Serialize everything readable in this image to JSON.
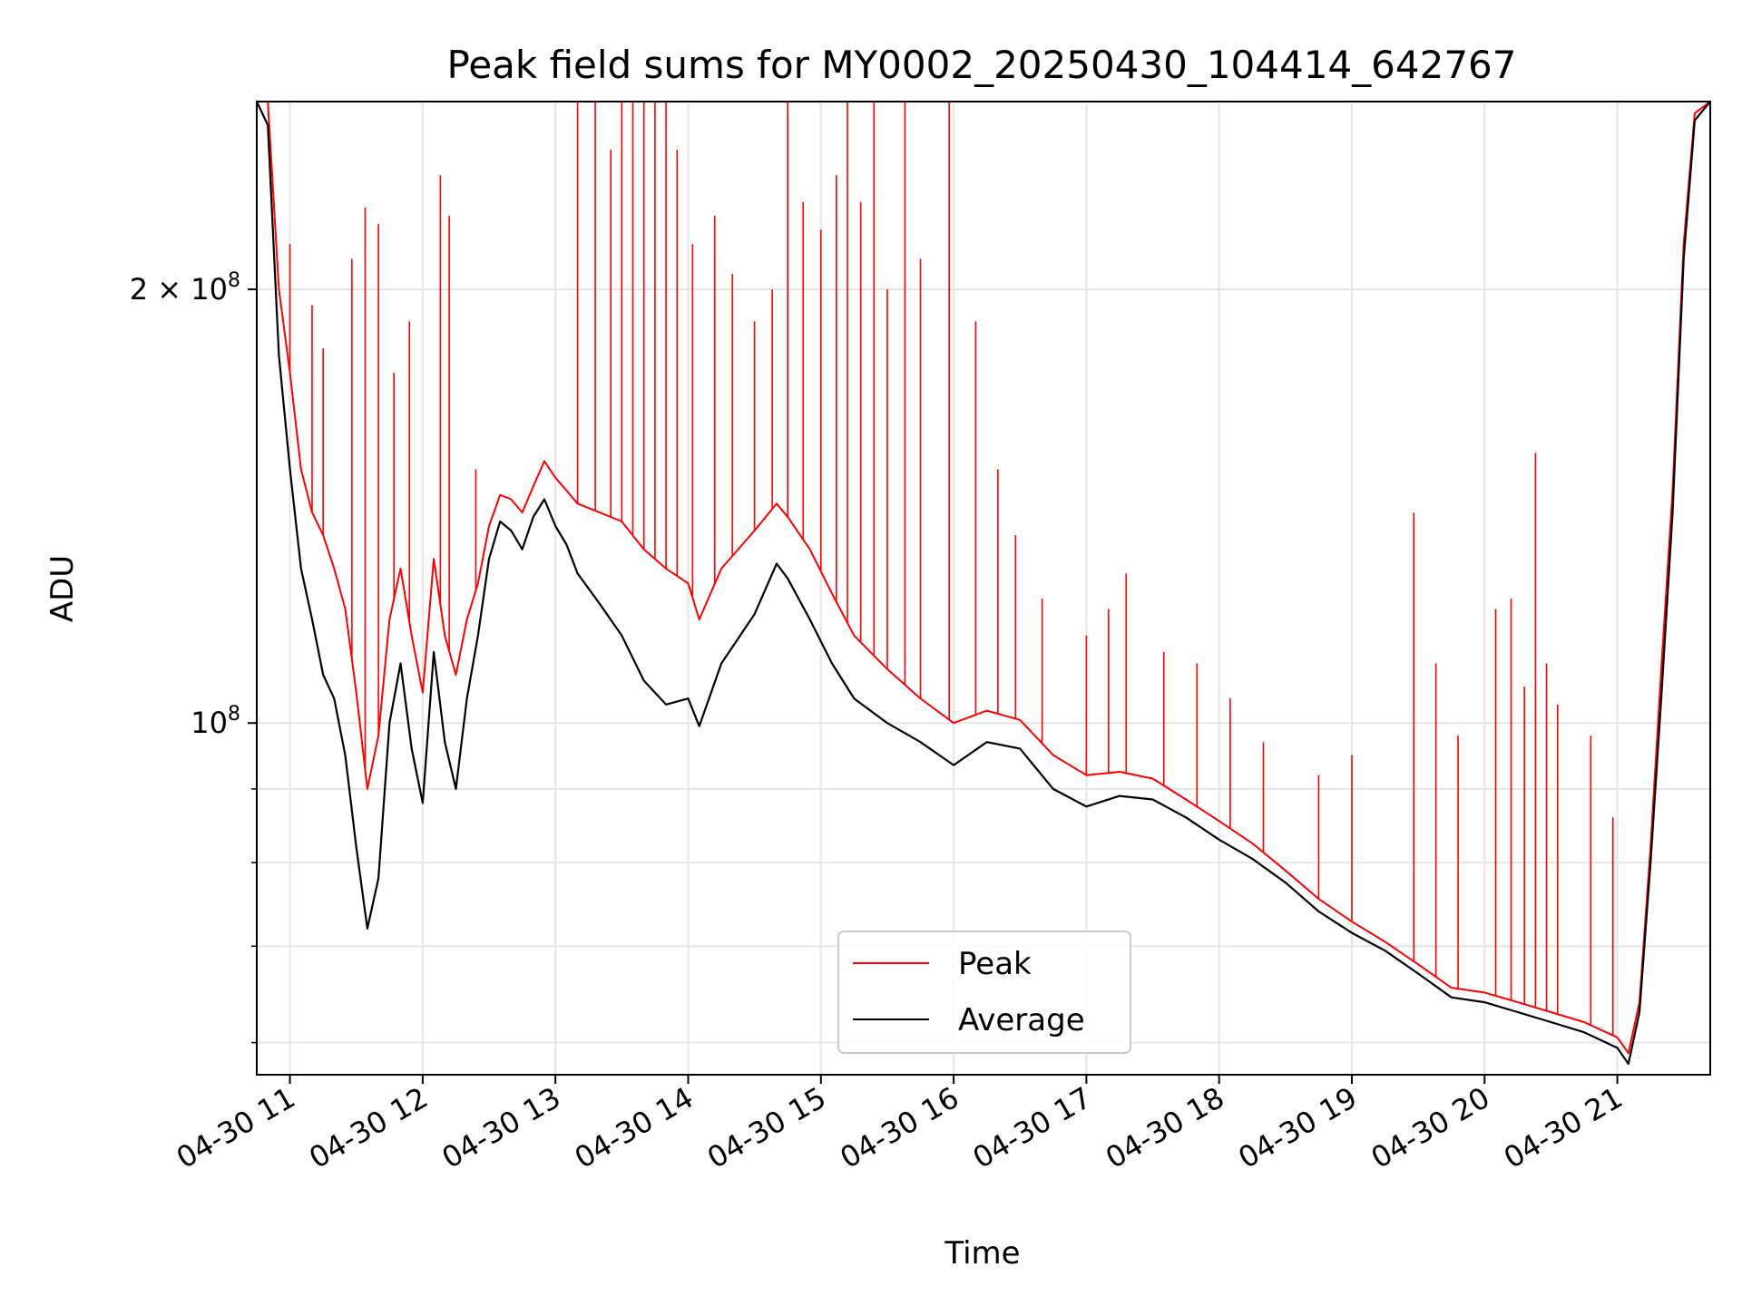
{
  "chart_data": {
    "type": "line",
    "title": "Peak field sums for MY0002_20250430_104414_642767",
    "xlabel": "Time",
    "ylabel": "ADU",
    "yscale": "log",
    "ylim": [
      57000000,
      270000000
    ],
    "xlim": [
      "2025-04-30 10:45",
      "2025-04-30 21:42"
    ],
    "x_ticks": [
      {
        "t": "2025-04-30 11:00",
        "label": "04-30 11"
      },
      {
        "t": "2025-04-30 12:00",
        "label": "04-30 12"
      },
      {
        "t": "2025-04-30 13:00",
        "label": "04-30 13"
      },
      {
        "t": "2025-04-30 14:00",
        "label": "04-30 14"
      },
      {
        "t": "2025-04-30 15:00",
        "label": "04-30 15"
      },
      {
        "t": "2025-04-30 16:00",
        "label": "04-30 16"
      },
      {
        "t": "2025-04-30 17:00",
        "label": "04-30 17"
      },
      {
        "t": "2025-04-30 18:00",
        "label": "04-30 18"
      },
      {
        "t": "2025-04-30 19:00",
        "label": "04-30 19"
      },
      {
        "t": "2025-04-30 20:00",
        "label": "04-30 20"
      },
      {
        "t": "2025-04-30 21:00",
        "label": "04-30 21"
      }
    ],
    "y_major_ticks": [
      {
        "value": 100000000,
        "base": "10",
        "exp": "8",
        "mant": ""
      },
      {
        "value": 200000000,
        "base": "10",
        "exp": "8",
        "mant": "2 × "
      }
    ],
    "y_minor_ticks": [
      60000000,
      70000000,
      80000000,
      90000000
    ],
    "grid": true,
    "legend": "lower-center",
    "series": [
      {
        "name": "Average",
        "color": "#000000",
        "points": [
          [
            "2025-04-30 10:45",
            270000000
          ],
          [
            "2025-04-30 10:50",
            260000000
          ],
          [
            "2025-04-30 10:55",
            180000000
          ],
          [
            "2025-04-30 11:00",
            150000000
          ],
          [
            "2025-04-30 11:05",
            128000000
          ],
          [
            "2025-04-30 11:10",
            118000000
          ],
          [
            "2025-04-30 11:15",
            108000000
          ],
          [
            "2025-04-30 11:20",
            104000000
          ],
          [
            "2025-04-30 11:25",
            95000000
          ],
          [
            "2025-04-30 11:30",
            82000000
          ],
          [
            "2025-04-30 11:35",
            72000000
          ],
          [
            "2025-04-30 11:40",
            78000000
          ],
          [
            "2025-04-30 11:45",
            100000000
          ],
          [
            "2025-04-30 11:50",
            110000000
          ],
          [
            "2025-04-30 11:55",
            96000000
          ],
          [
            "2025-04-30 12:00",
            88000000
          ],
          [
            "2025-04-30 12:05",
            112000000
          ],
          [
            "2025-04-30 12:10",
            97000000
          ],
          [
            "2025-04-30 12:15",
            90000000
          ],
          [
            "2025-04-30 12:20",
            104000000
          ],
          [
            "2025-04-30 12:25",
            115000000
          ],
          [
            "2025-04-30 12:30",
            130000000
          ],
          [
            "2025-04-30 12:35",
            138000000
          ],
          [
            "2025-04-30 12:40",
            136000000
          ],
          [
            "2025-04-30 12:45",
            132000000
          ],
          [
            "2025-04-30 12:50",
            139000000
          ],
          [
            "2025-04-30 12:55",
            143000000
          ],
          [
            "2025-04-30 13:00",
            137000000
          ],
          [
            "2025-04-30 13:05",
            133000000
          ],
          [
            "2025-04-30 13:10",
            127000000
          ],
          [
            "2025-04-30 13:20",
            121000000
          ],
          [
            "2025-04-30 13:30",
            115000000
          ],
          [
            "2025-04-30 13:40",
            107000000
          ],
          [
            "2025-04-30 13:50",
            103000000
          ],
          [
            "2025-04-30 14:00",
            104000000
          ],
          [
            "2025-04-30 14:05",
            99500000
          ],
          [
            "2025-04-30 14:15",
            110000000
          ],
          [
            "2025-04-30 14:30",
            119000000
          ],
          [
            "2025-04-30 14:40",
            129000000
          ],
          [
            "2025-04-30 14:45",
            126000000
          ],
          [
            "2025-04-30 14:55",
            118000000
          ],
          [
            "2025-04-30 15:05",
            110000000
          ],
          [
            "2025-04-30 15:15",
            104000000
          ],
          [
            "2025-04-30 15:30",
            100000000
          ],
          [
            "2025-04-30 15:45",
            97000000
          ],
          [
            "2025-04-30 16:00",
            93500000
          ],
          [
            "2025-04-30 16:15",
            97000000
          ],
          [
            "2025-04-30 16:30",
            96000000
          ],
          [
            "2025-04-30 16:45",
            90000000
          ],
          [
            "2025-04-30 17:00",
            87500000
          ],
          [
            "2025-04-30 17:15",
            89000000
          ],
          [
            "2025-04-30 17:30",
            88500000
          ],
          [
            "2025-04-30 17:45",
            86000000
          ],
          [
            "2025-04-30 18:00",
            83000000
          ],
          [
            "2025-04-30 18:15",
            80500000
          ],
          [
            "2025-04-30 18:30",
            77500000
          ],
          [
            "2025-04-30 18:45",
            74000000
          ],
          [
            "2025-04-30 19:00",
            71500000
          ],
          [
            "2025-04-30 19:15",
            69500000
          ],
          [
            "2025-04-30 19:30",
            67000000
          ],
          [
            "2025-04-30 19:45",
            64500000
          ],
          [
            "2025-04-30 20:00",
            64000000
          ],
          [
            "2025-04-30 20:15",
            63000000
          ],
          [
            "2025-04-30 20:30",
            62000000
          ],
          [
            "2025-04-30 20:45",
            61000000
          ],
          [
            "2025-04-30 21:00",
            59500000
          ],
          [
            "2025-04-30 21:05",
            58000000
          ],
          [
            "2025-04-30 21:10",
            63000000
          ],
          [
            "2025-04-30 21:15",
            80000000
          ],
          [
            "2025-04-30 21:20",
            105000000
          ],
          [
            "2025-04-30 21:25",
            140000000
          ],
          [
            "2025-04-30 21:30",
            210000000
          ],
          [
            "2025-04-30 21:35",
            262000000
          ],
          [
            "2025-04-30 21:42",
            270000000
          ]
        ]
      },
      {
        "name": "Peak",
        "color": "#ff0000",
        "points": [
          [
            "2025-04-30 10:45",
            270000000
          ],
          [
            "2025-04-30 10:50",
            270000000
          ],
          [
            "2025-04-30 10:55",
            200000000
          ],
          [
            "2025-04-30 11:00",
            175000000
          ],
          [
            "2025-04-30 11:05",
            150000000
          ],
          [
            "2025-04-30 11:10",
            140000000
          ],
          [
            "2025-04-30 11:15",
            135000000
          ],
          [
            "2025-04-30 11:20",
            128000000
          ],
          [
            "2025-04-30 11:25",
            120000000
          ],
          [
            "2025-04-30 11:30",
            105000000
          ],
          [
            "2025-04-30 11:35",
            90000000
          ],
          [
            "2025-04-30 11:40",
            98000000
          ],
          [
            "2025-04-30 11:45",
            118000000
          ],
          [
            "2025-04-30 11:50",
            128000000
          ],
          [
            "2025-04-30 11:55",
            115000000
          ],
          [
            "2025-04-30 12:00",
            105000000
          ],
          [
            "2025-04-30 12:05",
            130000000
          ],
          [
            "2025-04-30 12:10",
            115000000
          ],
          [
            "2025-04-30 12:15",
            108000000
          ],
          [
            "2025-04-30 12:20",
            118000000
          ],
          [
            "2025-04-30 12:25",
            125000000
          ],
          [
            "2025-04-30 12:30",
            137000000
          ],
          [
            "2025-04-30 12:35",
            144000000
          ],
          [
            "2025-04-30 12:40",
            143000000
          ],
          [
            "2025-04-30 12:45",
            140000000
          ],
          [
            "2025-04-30 12:50",
            146000000
          ],
          [
            "2025-04-30 12:55",
            152000000
          ],
          [
            "2025-04-30 13:00",
            148000000
          ],
          [
            "2025-04-30 13:05",
            145000000
          ],
          [
            "2025-04-30 13:10",
            142000000
          ],
          [
            "2025-04-30 13:20",
            140000000
          ],
          [
            "2025-04-30 13:30",
            138000000
          ],
          [
            "2025-04-30 13:40",
            132000000
          ],
          [
            "2025-04-30 13:50",
            128000000
          ],
          [
            "2025-04-30 14:00",
            125000000
          ],
          [
            "2025-04-30 14:05",
            118000000
          ],
          [
            "2025-04-30 14:15",
            128000000
          ],
          [
            "2025-04-30 14:30",
            136000000
          ],
          [
            "2025-04-30 14:40",
            142000000
          ],
          [
            "2025-04-30 14:45",
            139000000
          ],
          [
            "2025-04-30 14:55",
            132000000
          ],
          [
            "2025-04-30 15:05",
            123000000
          ],
          [
            "2025-04-30 15:15",
            115000000
          ],
          [
            "2025-04-30 15:30",
            109000000
          ],
          [
            "2025-04-30 15:45",
            104000000
          ],
          [
            "2025-04-30 16:00",
            100000000
          ],
          [
            "2025-04-30 16:15",
            102000000
          ],
          [
            "2025-04-30 16:30",
            100500000
          ],
          [
            "2025-04-30 16:45",
            95000000
          ],
          [
            "2025-04-30 17:00",
            92000000
          ],
          [
            "2025-04-30 17:15",
            92500000
          ],
          [
            "2025-04-30 17:30",
            91500000
          ],
          [
            "2025-04-30 17:45",
            88500000
          ],
          [
            "2025-04-30 18:00",
            85500000
          ],
          [
            "2025-04-30 18:15",
            82500000
          ],
          [
            "2025-04-30 18:30",
            79000000
          ],
          [
            "2025-04-30 18:45",
            75500000
          ],
          [
            "2025-04-30 19:00",
            72800000
          ],
          [
            "2025-04-30 19:15",
            70500000
          ],
          [
            "2025-04-30 19:30",
            68000000
          ],
          [
            "2025-04-30 19:45",
            65500000
          ],
          [
            "2025-04-30 20:00",
            65000000
          ],
          [
            "2025-04-30 20:15",
            64000000
          ],
          [
            "2025-04-30 20:30",
            63000000
          ],
          [
            "2025-04-30 20:45",
            62000000
          ],
          [
            "2025-04-30 21:00",
            60500000
          ],
          [
            "2025-04-30 21:05",
            59000000
          ],
          [
            "2025-04-30 21:10",
            64000000
          ],
          [
            "2025-04-30 21:15",
            82000000
          ],
          [
            "2025-04-30 21:20",
            110000000
          ],
          [
            "2025-04-30 21:25",
            145000000
          ],
          [
            "2025-04-30 21:30",
            215000000
          ],
          [
            "2025-04-30 21:35",
            265000000
          ],
          [
            "2025-04-30 21:42",
            270000000
          ]
        ],
        "spikes": [
          [
            "2025-04-30 11:00",
            215000000
          ],
          [
            "2025-04-30 11:10",
            195000000
          ],
          [
            "2025-04-30 11:15",
            182000000
          ],
          [
            "2025-04-30 11:28",
            210000000
          ],
          [
            "2025-04-30 11:34",
            228000000
          ],
          [
            "2025-04-30 11:40",
            222000000
          ],
          [
            "2025-04-30 11:47",
            175000000
          ],
          [
            "2025-04-30 11:54",
            190000000
          ],
          [
            "2025-04-30 12:08",
            240000000
          ],
          [
            "2025-04-30 12:12",
            225000000
          ],
          [
            "2025-04-30 12:24",
            150000000
          ],
          [
            "2025-04-30 13:10",
            270000000
          ],
          [
            "2025-04-30 13:18",
            270000000
          ],
          [
            "2025-04-30 13:25",
            250000000
          ],
          [
            "2025-04-30 13:30",
            270000000
          ],
          [
            "2025-04-30 13:35",
            270000000
          ],
          [
            "2025-04-30 13:40",
            270000000
          ],
          [
            "2025-04-30 13:45",
            270000000
          ],
          [
            "2025-04-30 13:50",
            270000000
          ],
          [
            "2025-04-30 13:55",
            250000000
          ],
          [
            "2025-04-30 14:02",
            215000000
          ],
          [
            "2025-04-30 14:12",
            225000000
          ],
          [
            "2025-04-30 14:20",
            205000000
          ],
          [
            "2025-04-30 14:30",
            190000000
          ],
          [
            "2025-04-30 14:38",
            200000000
          ],
          [
            "2025-04-30 14:45",
            270000000
          ],
          [
            "2025-04-30 14:52",
            230000000
          ],
          [
            "2025-04-30 15:00",
            220000000
          ],
          [
            "2025-04-30 15:07",
            240000000
          ],
          [
            "2025-04-30 15:12",
            270000000
          ],
          [
            "2025-04-30 15:18",
            230000000
          ],
          [
            "2025-04-30 15:24",
            270000000
          ],
          [
            "2025-04-30 15:30",
            200000000
          ],
          [
            "2025-04-30 15:38",
            270000000
          ],
          [
            "2025-04-30 15:45",
            210000000
          ],
          [
            "2025-04-30 15:58",
            270000000
          ],
          [
            "2025-04-30 16:10",
            190000000
          ],
          [
            "2025-04-30 16:20",
            150000000
          ],
          [
            "2025-04-30 16:28",
            135000000
          ],
          [
            "2025-04-30 16:40",
            122000000
          ],
          [
            "2025-04-30 17:00",
            115000000
          ],
          [
            "2025-04-30 17:10",
            120000000
          ],
          [
            "2025-04-30 17:18",
            127000000
          ],
          [
            "2025-04-30 17:35",
            112000000
          ],
          [
            "2025-04-30 17:50",
            110000000
          ],
          [
            "2025-04-30 18:05",
            104000000
          ],
          [
            "2025-04-30 18:20",
            97000000
          ],
          [
            "2025-04-30 18:45",
            92000000
          ],
          [
            "2025-04-30 19:00",
            95000000
          ],
          [
            "2025-04-30 19:28",
            140000000
          ],
          [
            "2025-04-30 19:38",
            110000000
          ],
          [
            "2025-04-30 19:48",
            98000000
          ],
          [
            "2025-04-30 20:05",
            120000000
          ],
          [
            "2025-04-30 20:12",
            122000000
          ],
          [
            "2025-04-30 20:18",
            106000000
          ],
          [
            "2025-04-30 20:23",
            154000000
          ],
          [
            "2025-04-30 20:28",
            110000000
          ],
          [
            "2025-04-30 20:33",
            103000000
          ],
          [
            "2025-04-30 20:48",
            98000000
          ],
          [
            "2025-04-30 20:58",
            86000000
          ]
        ]
      }
    ]
  }
}
